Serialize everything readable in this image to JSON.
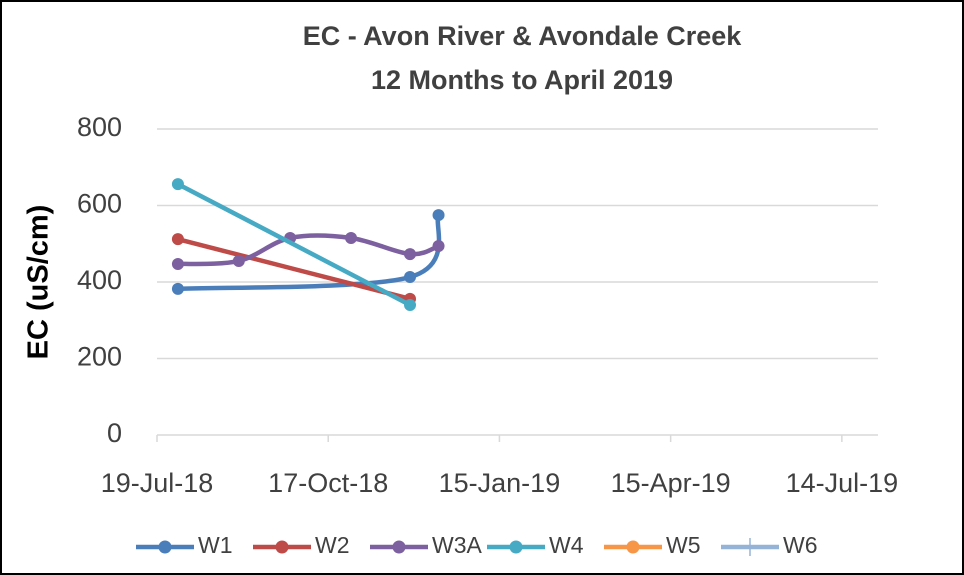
{
  "chart_data": {
    "type": "line",
    "title": "EC - Avon River & Avondale Creek",
    "subtitle": "12 Months to April 2019",
    "y_label": "EC (uS/cm)",
    "xlim": [
      "2018-07-19",
      "2019-08-02"
    ],
    "xticks": [
      {
        "value": "2018-07-19",
        "label": "19-Jul-18"
      },
      {
        "value": "2018-10-17",
        "label": "17-Oct-18"
      },
      {
        "value": "2019-01-15",
        "label": "15-Jan-19"
      },
      {
        "value": "2019-04-15",
        "label": "15-Apr-19"
      },
      {
        "value": "2019-07-14",
        "label": "14-Jul-19"
      }
    ],
    "ylim": [
      0,
      800
    ],
    "yticks": [
      0,
      200,
      400,
      600,
      800
    ],
    "grid": true,
    "smooth": true,
    "legend": "bottom",
    "series": [
      {
        "name": "W1",
        "color": "#4a7ebb",
        "x": [
          "2018-07-30",
          "2018-11-29",
          "2018-12-14"
        ],
        "values": [
          382,
          413,
          575
        ]
      },
      {
        "name": "W2",
        "color": "#be4b48",
        "x": [
          "2018-07-30",
          "2018-11-29"
        ],
        "values": [
          512,
          356
        ]
      },
      {
        "name": "W3A",
        "color": "#7d60a0",
        "x": [
          "2018-07-30",
          "2018-08-31",
          "2018-09-27",
          "2018-10-29",
          "2018-11-29",
          "2018-12-14"
        ],
        "values": [
          447,
          455,
          515,
          515,
          473,
          494
        ]
      },
      {
        "name": "W4",
        "color": "#46aac5",
        "x": [
          "2018-07-30",
          "2018-11-29"
        ],
        "values": [
          656,
          340
        ]
      },
      {
        "name": "W5",
        "color": "#f79646",
        "x": [],
        "values": []
      },
      {
        "name": "W6",
        "color": "#95b3d7",
        "x": [],
        "values": []
      }
    ]
  }
}
